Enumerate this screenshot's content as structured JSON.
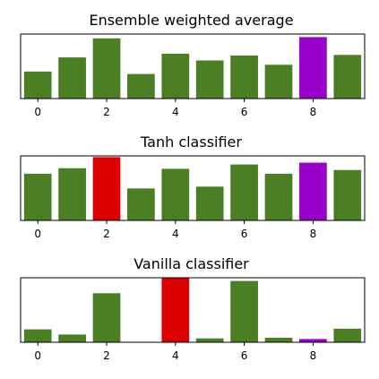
{
  "colors": {
    "default": "#4a7f24",
    "prediction": "#dd0000",
    "true_label": "#9900cc"
  },
  "chart_data": [
    {
      "type": "bar",
      "title": "Ensemble weighted average",
      "categories": [
        0,
        1,
        2,
        3,
        4,
        5,
        6,
        7,
        8,
        9
      ],
      "values": [
        0.044,
        0.067,
        0.098,
        0.04,
        0.073,
        0.062,
        0.07,
        0.055,
        0.1,
        0.071
      ],
      "bar_colors": [
        "default",
        "default",
        "default",
        "default",
        "default",
        "default",
        "default",
        "default",
        "true_label",
        "default"
      ],
      "xticks": [
        0,
        2,
        4,
        6,
        8
      ],
      "xlim": [
        -0.5,
        9.5
      ],
      "ylim": [
        0,
        0.105
      ],
      "xlabel": "",
      "ylabel": "",
      "grid": false,
      "legend": "none"
    },
    {
      "type": "bar",
      "title": "Tanh classifier",
      "categories": [
        0,
        1,
        2,
        3,
        4,
        5,
        6,
        7,
        8,
        9
      ],
      "values": [
        0.076,
        0.085,
        0.103,
        0.052,
        0.084,
        0.055,
        0.091,
        0.076,
        0.094,
        0.082
      ],
      "bar_colors": [
        "default",
        "default",
        "prediction",
        "default",
        "default",
        "default",
        "default",
        "default",
        "true_label",
        "default"
      ],
      "xticks": [
        0,
        2,
        4,
        6,
        8
      ],
      "xlim": [
        -0.5,
        9.5
      ],
      "ylim": [
        0,
        0.105
      ],
      "xlabel": "",
      "ylabel": "",
      "grid": false,
      "legend": "none"
    },
    {
      "type": "bar",
      "title": "Vanilla classifier",
      "categories": [
        0,
        1,
        2,
        3,
        4,
        5,
        6,
        7,
        8,
        9
      ],
      "values": [
        0.2,
        0.12,
        0.76,
        0.005,
        1.0,
        0.06,
        0.95,
        0.07,
        0.05,
        0.21
      ],
      "bar_colors": [
        "default",
        "default",
        "default",
        "default",
        "prediction",
        "default",
        "default",
        "default",
        "true_label",
        "default"
      ],
      "xticks": [
        0,
        2,
        4,
        6,
        8
      ],
      "xlim": [
        -0.5,
        9.5
      ],
      "ylim": [
        0,
        1.0
      ],
      "xlabel": "",
      "ylabel": "",
      "grid": false,
      "legend": "none"
    }
  ]
}
